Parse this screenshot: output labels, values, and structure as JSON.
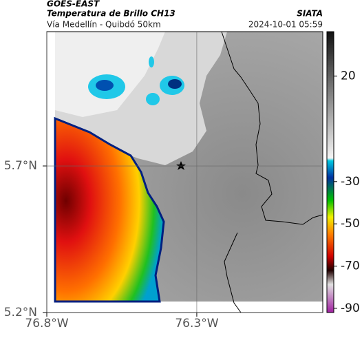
{
  "header": {
    "source": "GOES-EAST",
    "title": "Temperatura de Brillo CH13",
    "subtitle": "Vía Medellín - Quibdó 50km",
    "brand": "SIATA",
    "timestamp": "2024-10-01 05:59"
  },
  "map": {
    "lonlim": [
      -76.8,
      -75.88
    ],
    "latlim": [
      5.2,
      6.158
    ],
    "lat_ticks": [
      {
        "value": 5.2,
        "label": "5.2°N"
      },
      {
        "value": 5.7,
        "label": "5.7°N"
      }
    ],
    "lon_ticks": [
      {
        "value": -76.8,
        "label": "76.8°W"
      },
      {
        "value": -76.3,
        "label": "76.3°W"
      }
    ],
    "grid": true
  },
  "colorbar": {
    "lim": [
      -92,
      41
    ],
    "ticks": [
      20,
      -30,
      -50,
      -70,
      -90
    ]
  }
}
